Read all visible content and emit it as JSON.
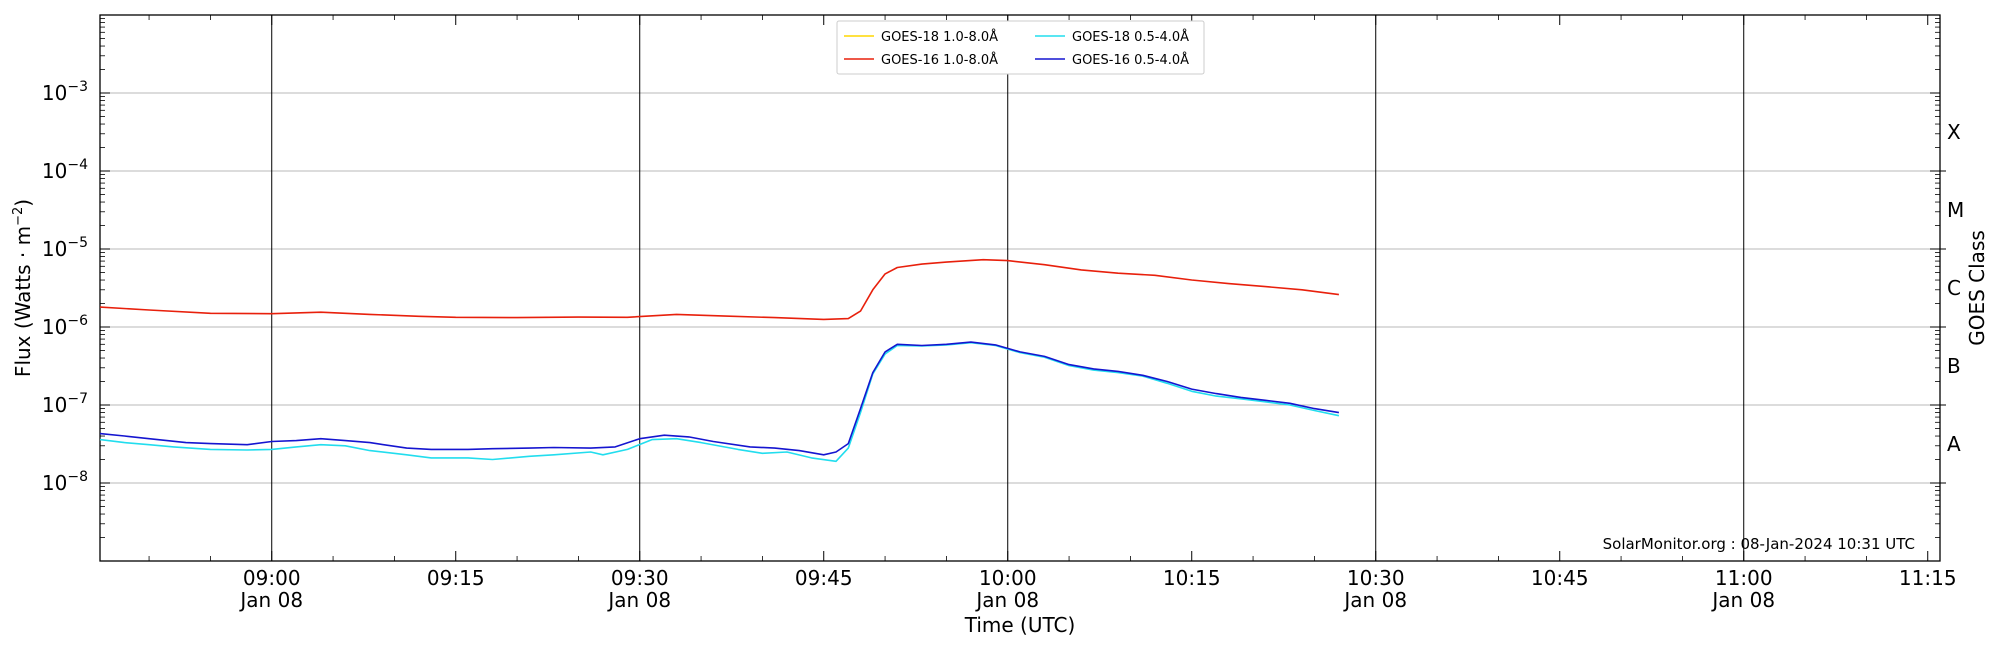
{
  "chart_data": {
    "type": "line",
    "title": "",
    "xlabel": "Time (UTC)",
    "ylabel": "Flux (Watts · m",
    "ylabel_sup": "−2",
    "ylabel_close": ")",
    "ylabel_right": "GOES Class",
    "yscale": "log",
    "ylim": [
      1e-09,
      0.01
    ],
    "xlim": [
      "08:46",
      "11:16"
    ],
    "y_ticks": [
      {
        "exp": -8,
        "base": "10",
        "sup": "−8"
      },
      {
        "exp": -7,
        "base": "10",
        "sup": "−7"
      },
      {
        "exp": -6,
        "base": "10",
        "sup": "−6"
      },
      {
        "exp": -5,
        "base": "10",
        "sup": "−5"
      },
      {
        "exp": -4,
        "base": "10",
        "sup": "−4"
      },
      {
        "exp": -3,
        "base": "10",
        "sup": "−3"
      }
    ],
    "x_ticks": [
      {
        "time": "09:00",
        "label": "09:00",
        "date": "Jan 08"
      },
      {
        "time": "09:15",
        "label": "09:15",
        "date": ""
      },
      {
        "time": "09:30",
        "label": "09:30",
        "date": "Jan 08"
      },
      {
        "time": "09:45",
        "label": "09:45",
        "date": ""
      },
      {
        "time": "10:00",
        "label": "10:00",
        "date": "Jan 08"
      },
      {
        "time": "10:15",
        "label": "10:15",
        "date": ""
      },
      {
        "time": "10:30",
        "label": "10:30",
        "date": "Jan 08"
      },
      {
        "time": "10:45",
        "label": "10:45",
        "date": ""
      },
      {
        "time": "11:00",
        "label": "11:00",
        "date": "Jan 08"
      },
      {
        "time": "11:15",
        "label": "11:15",
        "date": ""
      }
    ],
    "vlines": [
      "09:00",
      "09:30",
      "10:00",
      "10:30",
      "11:00"
    ],
    "goes_classes": [
      {
        "label": "A",
        "flux": 1e-08
      },
      {
        "label": "B",
        "flux": 1e-07
      },
      {
        "label": "C",
        "flux": 1e-06
      },
      {
        "label": "M",
        "flux": 1e-05
      },
      {
        "label": "X",
        "flux": 0.0001
      }
    ],
    "grid": true,
    "legend_position": "top-center",
    "credit": "SolarMonitor.org : 08-Jan-2024 10:31 UTC",
    "series": [
      {
        "name": "GOES-18 1.0-8.0Å",
        "color": "#ffd700",
        "points": []
      },
      {
        "name": "GOES-16 1.0-8.0Å",
        "color": "#e8200c",
        "points": [
          [
            "08:46",
            1.8e-06
          ],
          [
            "08:50",
            1.65e-06
          ],
          [
            "08:55",
            1.5e-06
          ],
          [
            "09:00",
            1.48e-06
          ],
          [
            "09:04",
            1.55e-06
          ],
          [
            "09:08",
            1.45e-06
          ],
          [
            "09:12",
            1.37e-06
          ],
          [
            "09:15",
            1.33e-06
          ],
          [
            "09:20",
            1.32e-06
          ],
          [
            "09:25",
            1.34e-06
          ],
          [
            "09:29",
            1.33e-06
          ],
          [
            "09:33",
            1.45e-06
          ],
          [
            "09:37",
            1.38e-06
          ],
          [
            "09:41",
            1.32e-06
          ],
          [
            "09:45",
            1.25e-06
          ],
          [
            "09:47",
            1.28e-06
          ],
          [
            "09:48",
            1.6e-06
          ],
          [
            "09:49",
            3e-06
          ],
          [
            "09:50",
            4.8e-06
          ],
          [
            "09:51",
            5.8e-06
          ],
          [
            "09:53",
            6.4e-06
          ],
          [
            "09:55",
            6.8e-06
          ],
          [
            "09:58",
            7.3e-06
          ],
          [
            "10:00",
            7.1e-06
          ],
          [
            "10:03",
            6.3e-06
          ],
          [
            "10:06",
            5.4e-06
          ],
          [
            "10:09",
            4.9e-06
          ],
          [
            "10:12",
            4.6e-06
          ],
          [
            "10:15",
            4e-06
          ],
          [
            "10:18",
            3.6e-06
          ],
          [
            "10:21",
            3.3e-06
          ],
          [
            "10:24",
            3e-06
          ],
          [
            "10:27",
            2.6e-06
          ]
        ]
      },
      {
        "name": "GOES-18 0.5-4.0Å",
        "color": "#22ddee",
        "points": [
          [
            "08:46",
            3.6e-08
          ],
          [
            "08:48",
            3.3e-08
          ],
          [
            "08:50",
            3.1e-08
          ],
          [
            "08:52",
            2.9e-08
          ],
          [
            "08:55",
            2.7e-08
          ],
          [
            "08:58",
            2.65e-08
          ],
          [
            "09:00",
            2.7e-08
          ],
          [
            "09:02",
            2.9e-08
          ],
          [
            "09:04",
            3.1e-08
          ],
          [
            "09:06",
            3e-08
          ],
          [
            "09:08",
            2.6e-08
          ],
          [
            "09:11",
            2.3e-08
          ],
          [
            "09:13",
            2.1e-08
          ],
          [
            "09:16",
            2.1e-08
          ],
          [
            "09:18",
            2e-08
          ],
          [
            "09:21",
            2.2e-08
          ],
          [
            "09:23",
            2.3e-08
          ],
          [
            "09:26",
            2.5e-08
          ],
          [
            "09:27",
            2.3e-08
          ],
          [
            "09:29",
            2.7e-08
          ],
          [
            "09:31",
            3.6e-08
          ],
          [
            "09:33",
            3.7e-08
          ],
          [
            "09:35",
            3.3e-08
          ],
          [
            "09:38",
            2.7e-08
          ],
          [
            "09:40",
            2.4e-08
          ],
          [
            "09:42",
            2.5e-08
          ],
          [
            "09:44",
            2.1e-08
          ],
          [
            "09:46",
            1.9e-08
          ],
          [
            "09:47",
            2.8e-08
          ],
          [
            "09:48",
            8e-08
          ],
          [
            "09:49",
            2.5e-07
          ],
          [
            "09:50",
            4.5e-07
          ],
          [
            "09:51",
            5.8e-07
          ],
          [
            "09:53",
            5.7e-07
          ],
          [
            "09:55",
            5.9e-07
          ],
          [
            "09:57",
            6.3e-07
          ],
          [
            "09:59",
            5.8e-07
          ],
          [
            "10:01",
            4.7e-07
          ],
          [
            "10:03",
            4.1e-07
          ],
          [
            "10:05",
            3.2e-07
          ],
          [
            "10:07",
            2.8e-07
          ],
          [
            "10:09",
            2.6e-07
          ],
          [
            "10:11",
            2.35e-07
          ],
          [
            "10:13",
            1.9e-07
          ],
          [
            "10:15",
            1.5e-07
          ],
          [
            "10:17",
            1.3e-07
          ],
          [
            "10:19",
            1.2e-07
          ],
          [
            "10:21",
            1.1e-07
          ],
          [
            "10:23",
            1e-07
          ],
          [
            "10:25",
            8.5e-08
          ],
          [
            "10:27",
            7.3e-08
          ]
        ]
      },
      {
        "name": "GOES-16 0.5-4.0Å",
        "color": "#1515d0",
        "points": [
          [
            "08:46",
            4.3e-08
          ],
          [
            "08:48",
            4e-08
          ],
          [
            "08:50",
            3.7e-08
          ],
          [
            "08:53",
            3.3e-08
          ],
          [
            "08:55",
            3.2e-08
          ],
          [
            "08:58",
            3.1e-08
          ],
          [
            "09:00",
            3.4e-08
          ],
          [
            "09:02",
            3.5e-08
          ],
          [
            "09:04",
            3.7e-08
          ],
          [
            "09:06",
            3.5e-08
          ],
          [
            "09:08",
            3.3e-08
          ],
          [
            "09:11",
            2.8e-08
          ],
          [
            "09:13",
            2.7e-08
          ],
          [
            "09:16",
            2.7e-08
          ],
          [
            "09:18",
            2.75e-08
          ],
          [
            "09:21",
            2.8e-08
          ],
          [
            "09:23",
            2.85e-08
          ],
          [
            "09:26",
            2.8e-08
          ],
          [
            "09:28",
            2.9e-08
          ],
          [
            "09:30",
            3.7e-08
          ],
          [
            "09:32",
            4.1e-08
          ],
          [
            "09:34",
            3.9e-08
          ],
          [
            "09:36",
            3.4e-08
          ],
          [
            "09:39",
            2.9e-08
          ],
          [
            "09:41",
            2.8e-08
          ],
          [
            "09:43",
            2.6e-08
          ],
          [
            "09:45",
            2.3e-08
          ],
          [
            "09:46",
            2.5e-08
          ],
          [
            "09:47",
            3.2e-08
          ],
          [
            "09:48",
            9e-08
          ],
          [
            "09:49",
            2.6e-07
          ],
          [
            "09:50",
            4.8e-07
          ],
          [
            "09:51",
            6e-07
          ],
          [
            "09:53",
            5.8e-07
          ],
          [
            "09:55",
            6e-07
          ],
          [
            "09:57",
            6.4e-07
          ],
          [
            "09:59",
            5.9e-07
          ],
          [
            "10:01",
            4.8e-07
          ],
          [
            "10:03",
            4.2e-07
          ],
          [
            "10:05",
            3.3e-07
          ],
          [
            "10:07",
            2.9e-07
          ],
          [
            "10:09",
            2.7e-07
          ],
          [
            "10:11",
            2.4e-07
          ],
          [
            "10:13",
            2e-07
          ],
          [
            "10:15",
            1.6e-07
          ],
          [
            "10:17",
            1.4e-07
          ],
          [
            "10:19",
            1.25e-07
          ],
          [
            "10:21",
            1.15e-07
          ],
          [
            "10:23",
            1.05e-07
          ],
          [
            "10:25",
            9e-08
          ],
          [
            "10:27",
            8e-08
          ]
        ]
      }
    ]
  }
}
